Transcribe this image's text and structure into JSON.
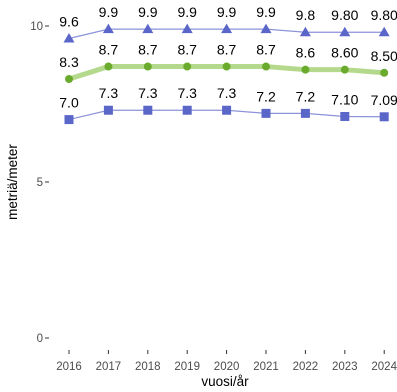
{
  "chart_data": {
    "type": "line",
    "xlabel": "vuosi/år",
    "ylabel": "metriä/meter",
    "x": [
      2016,
      2017,
      2018,
      2019,
      2020,
      2021,
      2022,
      2023,
      2024
    ],
    "x_tick_labels": [
      "2016",
      "2017",
      "2018",
      "2019",
      "2020",
      "2021",
      "2022",
      "2023",
      "2024"
    ],
    "ylim": [
      0,
      10
    ],
    "y_ticks": [
      0,
      5,
      10
    ],
    "y_tick_labels": [
      "0",
      "5",
      "10"
    ],
    "grid": false,
    "legend": "none",
    "series": [
      {
        "key": "upper",
        "marker": "triangle",
        "color": "#5b66c9",
        "line_color": "#8c93d9",
        "line_width": 1.2,
        "values": [
          9.6,
          9.9,
          9.9,
          9.9,
          9.9,
          9.9,
          9.8,
          9.8,
          9.8
        ],
        "labels": [
          "9.6",
          "9.9",
          "9.9",
          "9.9",
          "9.9",
          "9.9",
          "9.8",
          "9.80",
          "9.80"
        ]
      },
      {
        "key": "middle",
        "marker": "circle",
        "color": "#6aab2e",
        "line_color": "#b5d98c",
        "line_width": 5,
        "values": [
          8.3,
          8.7,
          8.7,
          8.7,
          8.7,
          8.7,
          8.6,
          8.6,
          8.5
        ],
        "labels": [
          "8.3",
          "8.7",
          "8.7",
          "8.7",
          "8.7",
          "8.7",
          "8.6",
          "8.60",
          "8.50"
        ]
      },
      {
        "key": "lower",
        "marker": "square",
        "color": "#5b66c9",
        "line_color": "#8c93d9",
        "line_width": 1.2,
        "values": [
          7.0,
          7.3,
          7.3,
          7.3,
          7.3,
          7.2,
          7.2,
          7.1,
          7.09
        ],
        "labels": [
          "7.0",
          "7.3",
          "7.3",
          "7.3",
          "7.3",
          "7.2",
          "7.2",
          "7.10",
          "7.09"
        ]
      }
    ]
  }
}
